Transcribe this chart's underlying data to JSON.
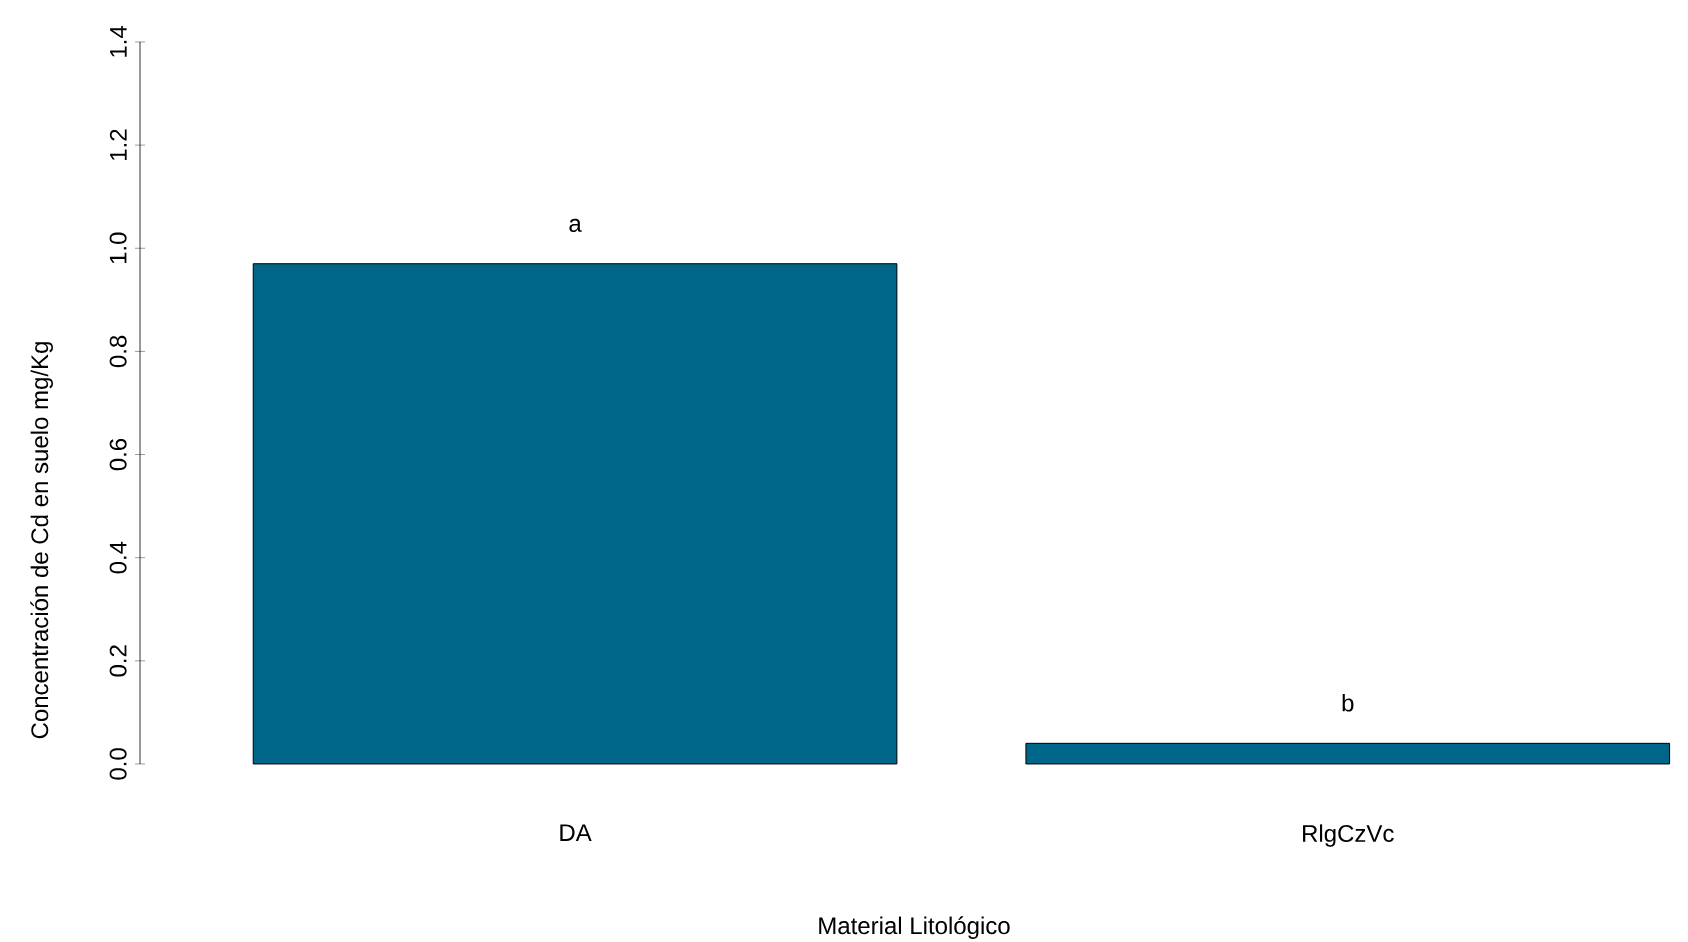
{
  "chart_data": {
    "type": "bar",
    "xlabel": "Material Litológico",
    "ylabel": "Concentración de Cd en suelo mg/Kg",
    "categories": [
      "DA",
      "RlgCzVc"
    ],
    "values": [
      0.97,
      0.04
    ],
    "color": "#006689",
    "ylim": [
      0,
      1.4
    ],
    "yticks": [
      {
        "value": 0,
        "label": "0.0"
      },
      0.2,
      0.4,
      0.6,
      0.8,
      {
        "value": 1,
        "label": "1.0"
      },
      1.2,
      1.4
    ],
    "annotations": [
      "a",
      "b"
    ]
  }
}
